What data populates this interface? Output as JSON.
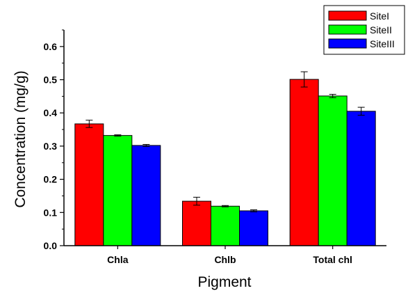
{
  "chart_data": {
    "type": "bar",
    "title": "",
    "xlabel": "Pigment",
    "ylabel": "Concentration (mg/g)",
    "categories": [
      "Chla",
      "Chlb",
      "Total chl"
    ],
    "ylim": [
      0,
      0.65
    ],
    "yticks": [
      "0.0",
      "0.1",
      "0.2",
      "0.3",
      "0.4",
      "0.5",
      "0.6"
    ],
    "error_bars": true,
    "legend_position": "top-right",
    "series": [
      {
        "name": "SiteI",
        "color": "#ff0000",
        "values": [
          0.367,
          0.134,
          0.501
        ],
        "errors": [
          0.011,
          0.012,
          0.023
        ]
      },
      {
        "name": "SiteII",
        "color": "#00ff00",
        "values": [
          0.332,
          0.119,
          0.451
        ],
        "errors": [
          0.002,
          0.002,
          0.005
        ]
      },
      {
        "name": "SiteIII",
        "color": "#0000ff",
        "values": [
          0.302,
          0.105,
          0.405
        ],
        "errors": [
          0.003,
          0.003,
          0.012
        ]
      }
    ]
  }
}
